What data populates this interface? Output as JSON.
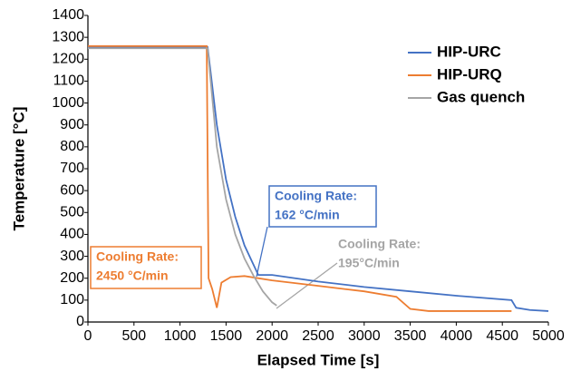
{
  "chart_data": {
    "type": "line",
    "x_label": "Elapsed Time [s]",
    "y_label": "Temperature [°C]",
    "xlim": [
      0,
      5000
    ],
    "ylim": [
      0,
      1400
    ],
    "xticks": [
      0,
      500,
      1000,
      1500,
      2000,
      2500,
      3000,
      3500,
      4000,
      4500,
      5000
    ],
    "yticks": [
      0,
      100,
      200,
      300,
      400,
      500,
      600,
      700,
      800,
      900,
      1000,
      1100,
      1200,
      1300,
      1400
    ],
    "grid": false,
    "legend": "upper right",
    "series": [
      {
        "name": "HIP-URC",
        "color": "#4472c4",
        "x": [
          0,
          1300,
          1330,
          1400,
          1500,
          1600,
          1700,
          1800,
          1850,
          2000,
          2500,
          3000,
          3500,
          4000,
          4600,
          4650,
          4800,
          5000
        ],
        "y": [
          1255,
          1255,
          1150,
          900,
          650,
          480,
          350,
          260,
          215,
          215,
          185,
          160,
          140,
          120,
          100,
          65,
          55,
          50
        ]
      },
      {
        "name": "HIP-URQ",
        "color": "#ed7d31",
        "x": [
          0,
          1290,
          1310,
          1350,
          1400,
          1450,
          1550,
          1700,
          2000,
          2500,
          3000,
          3350,
          3500,
          3700,
          4600
        ],
        "y": [
          1260,
          1260,
          200,
          150,
          65,
          180,
          205,
          210,
          190,
          165,
          140,
          115,
          60,
          50,
          50
        ]
      },
      {
        "name": "Gas quench",
        "color": "#a5a5a5",
        "x": [
          0,
          1300,
          1400,
          1500,
          1600,
          1700,
          1800,
          1900,
          2000,
          2050
        ],
        "y": [
          1250,
          1250,
          800,
          560,
          400,
          290,
          210,
          140,
          90,
          75
        ]
      }
    ],
    "annotations": [
      {
        "lines": [
          "Cooling Rate:",
          "162 °C/min"
        ],
        "color": "#4472c4"
      },
      {
        "lines": [
          "Cooling Rate:",
          "2450 °C/min"
        ],
        "color": "#ed7d31"
      },
      {
        "lines": [
          "Cooling Rate:",
          "195°C/min"
        ],
        "color": "#a5a5a5"
      }
    ]
  }
}
